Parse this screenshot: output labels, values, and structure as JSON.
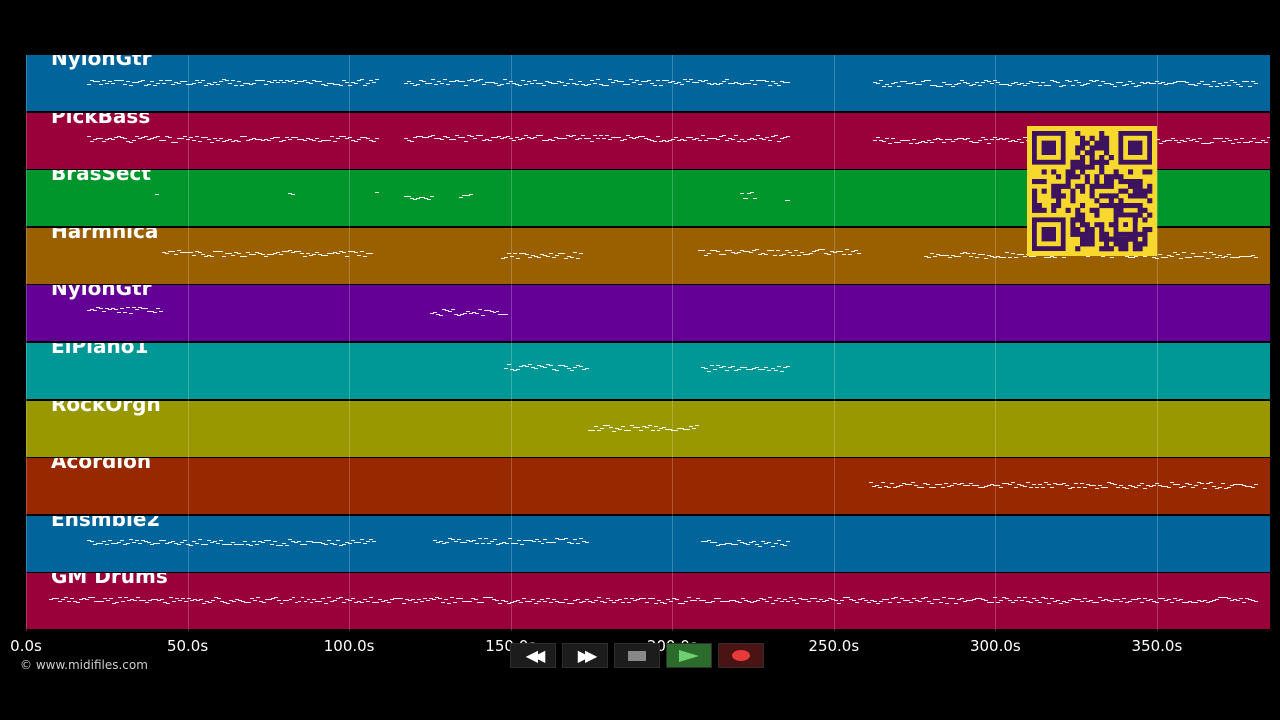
{
  "player": {
    "copyright": "© www.midifiles.com",
    "transport": [
      {
        "id": "rewind",
        "icon": "rewind-icon"
      },
      {
        "id": "fast-forward",
        "icon": "fast-forward-icon"
      },
      {
        "id": "stop",
        "icon": "stop-icon"
      },
      {
        "id": "play",
        "icon": "play-icon"
      },
      {
        "id": "record",
        "icon": "record-icon"
      }
    ],
    "qr_code": {
      "icon": "qr-code-icon",
      "colors": {
        "background": "#f6d92c",
        "modules": "#3d1360"
      }
    }
  },
  "chart_data": {
    "type": "piano-roll",
    "x_unit": "s",
    "xlim": [
      0,
      385
    ],
    "ticks": [
      "0.0s",
      "50.0s",
      "100.0s",
      "150.0s",
      "200.0s",
      "250.0s",
      "300.0s",
      "350.0s"
    ],
    "tick_values": [
      0,
      50,
      100,
      150,
      200,
      250,
      300,
      350
    ],
    "tracks": [
      {
        "name": "NylonGtr",
        "color": "#01649a",
        "segments": [
          [
            19,
            109
          ],
          [
            117,
            236
          ],
          [
            262,
            381
          ]
        ]
      },
      {
        "name": "PickBass",
        "color": "#9a0039",
        "segments": [
          [
            19,
            109
          ],
          [
            117,
            236
          ],
          [
            262,
            385
          ]
        ]
      },
      {
        "name": "BrasSect",
        "color": "#00962c",
        "segments": [
          [
            40,
            41
          ],
          [
            81,
            83
          ],
          [
            108,
            109
          ],
          [
            117,
            126
          ],
          [
            134,
            138
          ],
          [
            221,
            226
          ],
          [
            235,
            236
          ]
        ]
      },
      {
        "name": "Harmnica",
        "color": "#9a6000",
        "segments": [
          [
            42,
            107
          ],
          [
            147,
            172
          ],
          [
            208,
            258
          ],
          [
            278,
            381
          ]
        ]
      },
      {
        "name": "NylonGtr",
        "color": "#650096",
        "segments": [
          [
            19,
            42
          ],
          [
            125,
            149
          ]
        ]
      },
      {
        "name": "ElPiano1",
        "color": "#009896",
        "segments": [
          [
            148,
            174
          ],
          [
            209,
            236
          ]
        ]
      },
      {
        "name": "RockOrgn",
        "color": "#9a9800",
        "segments": [
          [
            174,
            208
          ]
        ]
      },
      {
        "name": "Acordion",
        "color": "#982800",
        "segments": [
          [
            261,
            381
          ]
        ]
      },
      {
        "name": "Ensmble2",
        "color": "#01649a",
        "segments": [
          [
            19,
            108
          ],
          [
            126,
            174
          ],
          [
            209,
            236
          ]
        ]
      },
      {
        "name": "GM Drums",
        "color": "#9a0039",
        "segments": [
          [
            7,
            381
          ]
        ]
      }
    ]
  }
}
